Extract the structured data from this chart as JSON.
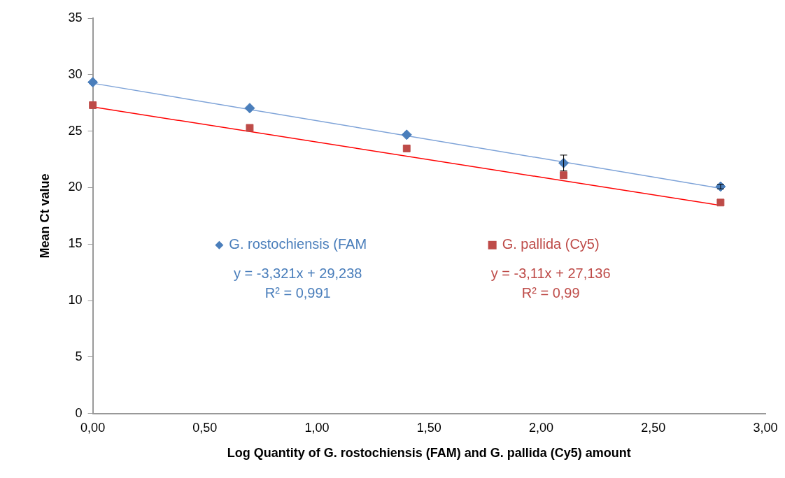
{
  "chart_data": {
    "type": "scatter",
    "ylabel": "Mean Ct value",
    "xlabel": "Log Quantity of G. rostochiensis (FAM) and G. pallida (Cy5) amount",
    "series": [
      {
        "type": "scatter",
        "name": "G. rostochiensis (FAM",
        "color": "#4a7ebb",
        "marker": "diamond",
        "x": [
          0,
          0.7,
          1.4,
          2.1,
          2.8
        ],
        "values": [
          29.33,
          27.04,
          24.68,
          22.18,
          20.09
        ],
        "errors": [
          null,
          null,
          null,
          0.7,
          0.2
        ]
      },
      {
        "type": "scatter",
        "name": "G. pallida (Cy5)",
        "color": "#be4b48",
        "marker": "square",
        "x": [
          0,
          0.7,
          1.4,
          2.1,
          2.8
        ],
        "values": [
          27.3,
          25.29,
          23.47,
          21.1,
          18.68
        ]
      },
      {
        "type": "line",
        "color": "#7ea3d8",
        "marker": "none",
        "x": [
          0,
          2.8
        ],
        "values": [
          29.24,
          19.94
        ]
      },
      {
        "type": "line",
        "color": "#ff0000",
        "marker": "none",
        "x": [
          0,
          2.8
        ],
        "values": [
          27.14,
          18.43
        ]
      }
    ],
    "annotations": [
      "y = -3,321x + 29,238\nR² = 0,991",
      "y = -3,11x + 27,136\nR² = 0,99"
    ],
    "legend": "center",
    "grid": false,
    "xlim": [
      0,
      3
    ],
    "xticks": [
      {
        "value": 0,
        "label": "0,00"
      },
      {
        "value": 0.5,
        "label": "0,50"
      },
      {
        "value": 1,
        "label": "1,00"
      },
      {
        "value": 1.5,
        "label": "1,50"
      },
      {
        "value": 2,
        "label": "2,00"
      },
      {
        "value": 2.5,
        "label": "2,50"
      },
      {
        "value": 3,
        "label": "3,00"
      }
    ],
    "ylim": [
      0,
      35
    ],
    "yticks": [
      0,
      5,
      10,
      15,
      20,
      25,
      30,
      35
    ]
  }
}
